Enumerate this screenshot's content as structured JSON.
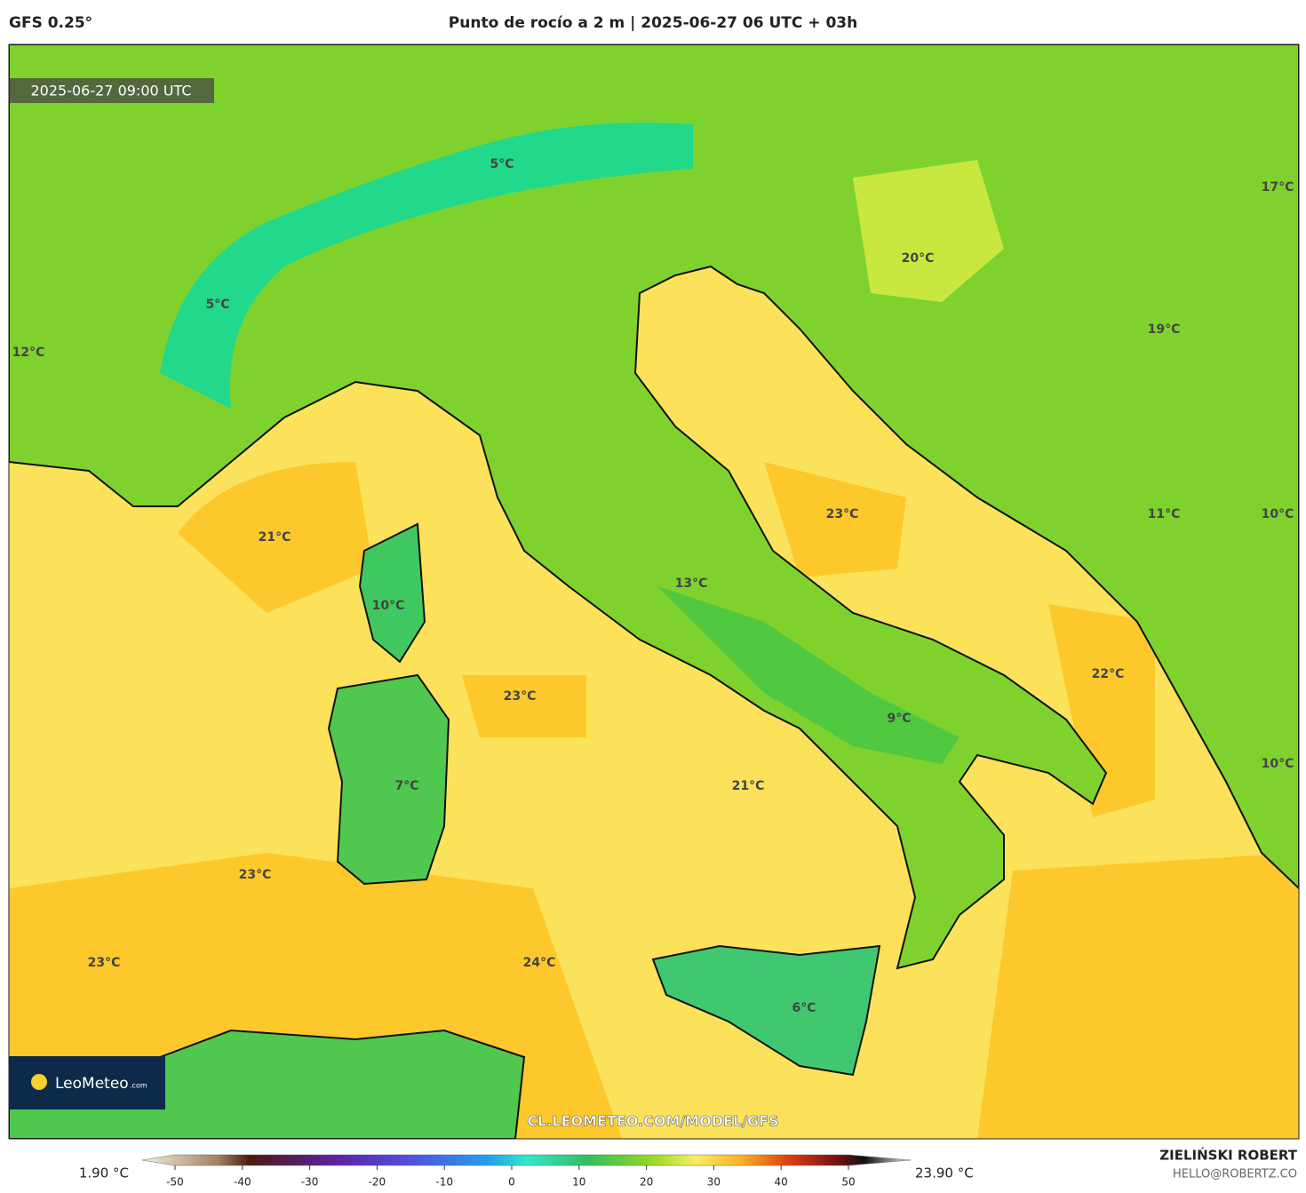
{
  "header": {
    "model": "GFS 0.25°",
    "title": "Punto de rocío a 2 m | 2025-06-27 06 UTC + 03h"
  },
  "map": {
    "timestamp": "2025-06-27 09:00 UTC",
    "watermark": "CL.LEOMETEO.COM/MODEL/GFS",
    "labels": [
      "5°C",
      "5°C",
      "12°C",
      "17°C",
      "20°C",
      "19°C",
      "21°C",
      "10°C",
      "23°C",
      "11°C",
      "10°C",
      "13°C",
      "22°C",
      "23°C",
      "9°C",
      "10°C",
      "21°C",
      "7°C",
      "23°C",
      "23°C",
      "24°C",
      "6°C"
    ]
  },
  "logo": {
    "text": "LeoMeteo",
    "suffix": ".com"
  },
  "colorbar": {
    "min_label": "1.90 °C",
    "max_label": "23.90 °C",
    "ticks": [
      -50,
      -40,
      -30,
      -20,
      -10,
      0,
      10,
      20,
      30,
      40,
      50
    ]
  },
  "credit": {
    "name": "ZIELIŃSKI ROBERT",
    "email": "HELLO@ROBERTZ.CO"
  }
}
